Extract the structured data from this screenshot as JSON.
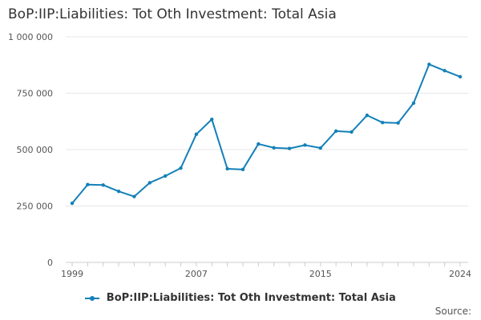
{
  "chart_data": {
    "type": "line",
    "title": "BoP:IIP:Liabilities: Tot Oth Investment: Total Asia",
    "xlabel": "",
    "ylabel": "",
    "x": [
      1999,
      2000,
      2001,
      2002,
      2003,
      2004,
      2005,
      2006,
      2007,
      2008,
      2009,
      2010,
      2011,
      2012,
      2013,
      2014,
      2015,
      2016,
      2017,
      2018,
      2019,
      2020,
      2021,
      2022,
      2023,
      2024
    ],
    "series": [
      {
        "name": "BoP:IIP:Liabilities: Tot Oth Investment: Total Asia",
        "values": [
          262000,
          345000,
          343000,
          315000,
          292000,
          353000,
          383000,
          418000,
          568000,
          634000,
          415000,
          412000,
          525000,
          508000,
          505000,
          520000,
          507000,
          582000,
          578000,
          652000,
          620000,
          618000,
          706000,
          878000,
          850000,
          823000
        ],
        "color": "#1380b8"
      }
    ],
    "xlim": [
      1999,
      2024
    ],
    "ylim": [
      0,
      1000000
    ],
    "x_ticks": [
      1999,
      2007,
      2015,
      2024
    ],
    "x_tick_labels": [
      "1999",
      "2007",
      "2015",
      "2024"
    ],
    "y_ticks": [
      0,
      250000,
      500000,
      750000,
      1000000
    ],
    "y_tick_labels": [
      "0",
      "250 000",
      "500 000",
      "750 000",
      "1 000 000"
    ],
    "grid": true,
    "legend_position": "bottom-center"
  },
  "source_label": "Source:"
}
